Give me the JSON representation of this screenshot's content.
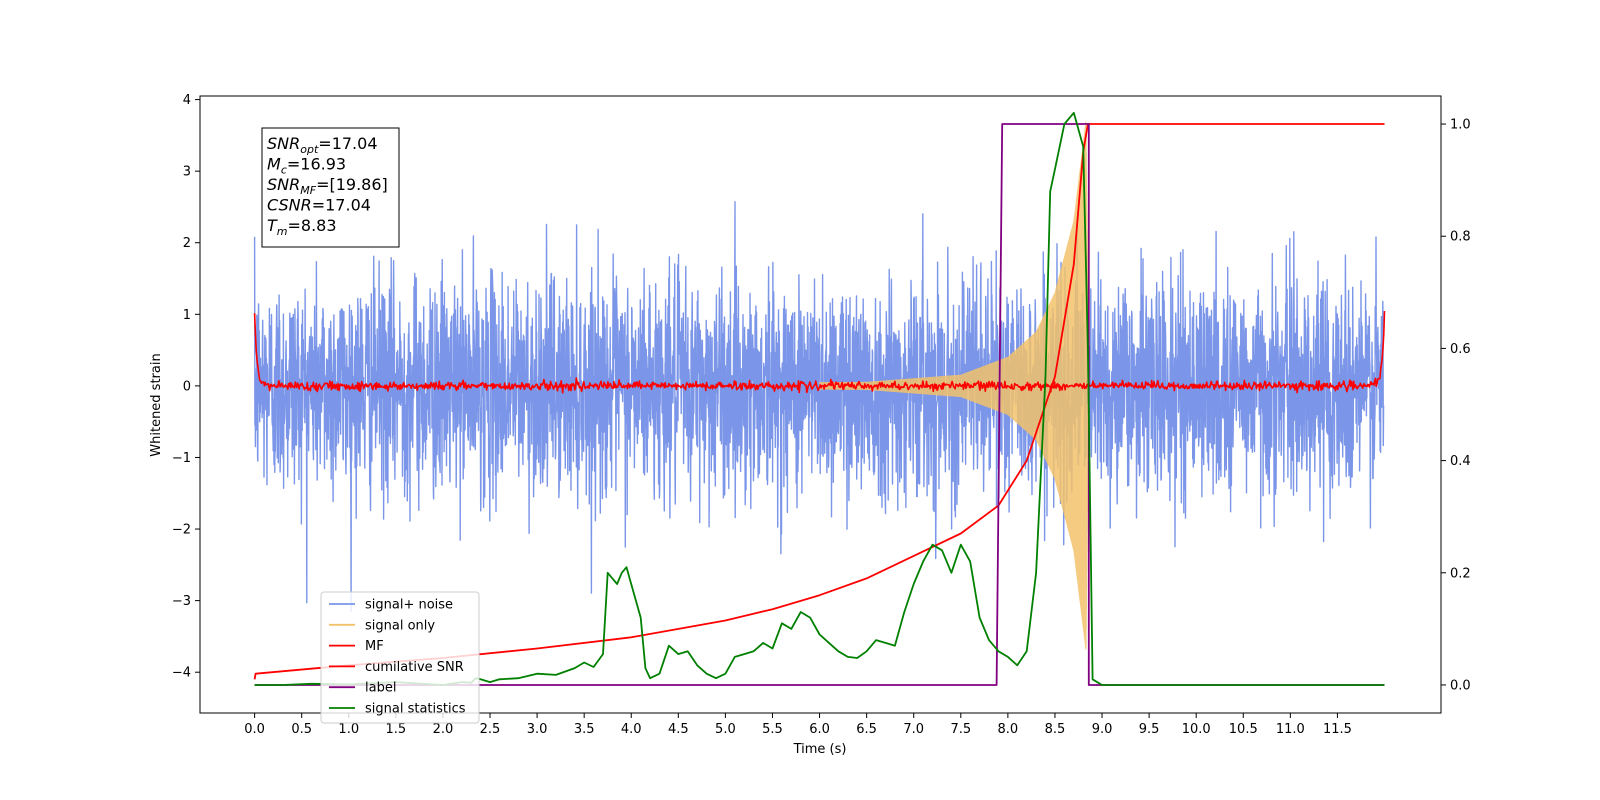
{
  "chart_data": {
    "type": "line",
    "xlabel": "Time (s)",
    "ylabel": "Whitened strain",
    "xlim": [
      -0.58,
      12.6
    ],
    "ylim": [
      -4.57,
      4.05
    ],
    "y2lim": [
      -0.05,
      1.05
    ],
    "x_ticks": [
      0.0,
      0.5,
      1.0,
      1.5,
      2.0,
      2.5,
      3.0,
      3.5,
      4.0,
      4.5,
      5.0,
      5.5,
      6.0,
      6.5,
      7.0,
      7.5,
      8.0,
      8.5,
      9.0,
      9.5,
      10.0,
      10.5,
      11.0,
      11.5
    ],
    "x_tick_labels": [
      "0.0",
      "0.5",
      "1.0",
      "1.5",
      "2.0",
      "2.5",
      "3.0",
      "3.5",
      "4.0",
      "4.5",
      "5.0",
      "5.5",
      "6.0",
      "6.5",
      "7.0",
      "7.5",
      "8.0",
      "8.5",
      "9.0",
      "9.5",
      "10.0",
      "10.5",
      "11.0",
      "11.5"
    ],
    "y_ticks": [
      4,
      3,
      2,
      1,
      0,
      -1,
      -2,
      -3,
      -4
    ],
    "y_tick_labels": [
      "4",
      "3",
      "2",
      "1",
      "0",
      "−1",
      "−2",
      "−3",
      "−4"
    ],
    "y2_ticks": [
      1.0,
      0.8,
      0.6,
      0.4,
      0.2,
      0.0
    ],
    "y2_tick_labels": [
      "1.0",
      "0.8",
      "0.6",
      "0.4",
      "0.2",
      "0.0"
    ],
    "grid": false,
    "legend_position": "lower-left",
    "annotation": {
      "lines": [
        {
          "base": "SNR",
          "sub": "opt",
          "rest": "=17.04"
        },
        {
          "base": "M",
          "sub": "c",
          "rest": "=16.93"
        },
        {
          "base": "SNR",
          "sub": "MF",
          "rest": "=[19.86]"
        },
        {
          "base": "CSNR",
          "sub": "",
          "rest": "=17.04"
        },
        {
          "base": "T",
          "sub": "m",
          "rest": "=8.83"
        }
      ]
    },
    "series": [
      {
        "name": "signal+ noise",
        "color": "#7b96e8",
        "axis": "left",
        "kind": "noise",
        "x_range": [
          0.0,
          11.99
        ],
        "amplitude_std": 0.75,
        "amplitude_max": 3.35
      },
      {
        "name": "signal only",
        "color": "#f2c26b",
        "axis": "left",
        "kind": "chirp",
        "x_range": [
          0.0,
          8.83
        ],
        "envelope": [
          [
            0.0,
            0.0
          ],
          [
            6.5,
            0.05
          ],
          [
            7.5,
            0.15
          ],
          [
            8.0,
            0.4
          ],
          [
            8.3,
            0.75
          ],
          [
            8.5,
            1.3
          ],
          [
            8.7,
            2.3
          ],
          [
            8.83,
            3.7
          ],
          [
            8.86,
            0.0
          ]
        ]
      },
      {
        "name": "MF",
        "color": "#ff0000",
        "axis": "left",
        "kind": "mf",
        "x_range": [
          0.0,
          12.0
        ],
        "baseline": 0.0,
        "edge_value": 1.0,
        "noise_std": 0.03
      },
      {
        "name": "cumilative SNR",
        "color": "#ff0000",
        "axis": "right",
        "x": [
          0.0,
          0.01,
          1.0,
          2.0,
          3.0,
          4.0,
          5.0,
          5.5,
          6.0,
          6.5,
          7.0,
          7.5,
          7.9,
          8.2,
          8.5,
          8.7,
          8.8,
          8.85,
          12.0
        ],
        "y": [
          0.01,
          0.02,
          0.035,
          0.048,
          0.065,
          0.085,
          0.115,
          0.135,
          0.16,
          0.19,
          0.23,
          0.27,
          0.32,
          0.4,
          0.55,
          0.75,
          0.95,
          1.0,
          1.0
        ]
      },
      {
        "name": "label",
        "color": "#800080",
        "axis": "right",
        "x": [
          0.0,
          7.88,
          7.94,
          8.86,
          8.86,
          12.0
        ],
        "y": [
          0.0,
          0.0,
          1.0,
          1.0,
          0.0,
          0.0
        ]
      },
      {
        "name": "signal statistics",
        "color": "#008000",
        "axis": "right",
        "x": [
          0.0,
          0.3,
          0.6,
          1.0,
          1.5,
          2.0,
          2.2,
          2.3,
          2.35,
          2.4,
          2.5,
          2.6,
          2.8,
          3.0,
          3.2,
          3.4,
          3.5,
          3.6,
          3.7,
          3.75,
          3.8,
          3.85,
          3.9,
          3.95,
          4.0,
          4.1,
          4.15,
          4.2,
          4.3,
          4.4,
          4.5,
          4.6,
          4.7,
          4.8,
          4.9,
          5.0,
          5.1,
          5.2,
          5.3,
          5.4,
          5.5,
          5.6,
          5.7,
          5.8,
          5.9,
          6.0,
          6.1,
          6.2,
          6.3,
          6.4,
          6.5,
          6.6,
          6.7,
          6.8,
          6.9,
          7.0,
          7.1,
          7.2,
          7.3,
          7.4,
          7.5,
          7.6,
          7.7,
          7.8,
          7.9,
          8.0,
          8.1,
          8.2,
          8.3,
          8.4,
          8.45,
          8.5,
          8.6,
          8.7,
          8.8,
          8.85,
          8.9,
          9.0,
          12.0
        ],
        "y": [
          0.0,
          0.0,
          0.002,
          0.001,
          0.005,
          0.0,
          0.005,
          0.004,
          0.012,
          0.01,
          0.005,
          0.01,
          0.012,
          0.02,
          0.018,
          0.03,
          0.04,
          0.032,
          0.055,
          0.2,
          0.19,
          0.18,
          0.2,
          0.21,
          0.18,
          0.12,
          0.03,
          0.012,
          0.02,
          0.07,
          0.055,
          0.06,
          0.035,
          0.02,
          0.012,
          0.02,
          0.05,
          0.055,
          0.06,
          0.075,
          0.065,
          0.11,
          0.1,
          0.13,
          0.12,
          0.09,
          0.075,
          0.06,
          0.05,
          0.048,
          0.06,
          0.08,
          0.075,
          0.07,
          0.13,
          0.18,
          0.22,
          0.25,
          0.24,
          0.2,
          0.25,
          0.22,
          0.12,
          0.08,
          0.06,
          0.05,
          0.035,
          0.06,
          0.2,
          0.55,
          0.88,
          0.92,
          1.0,
          1.02,
          0.96,
          0.6,
          0.01,
          0.0,
          0.0
        ]
      }
    ]
  }
}
